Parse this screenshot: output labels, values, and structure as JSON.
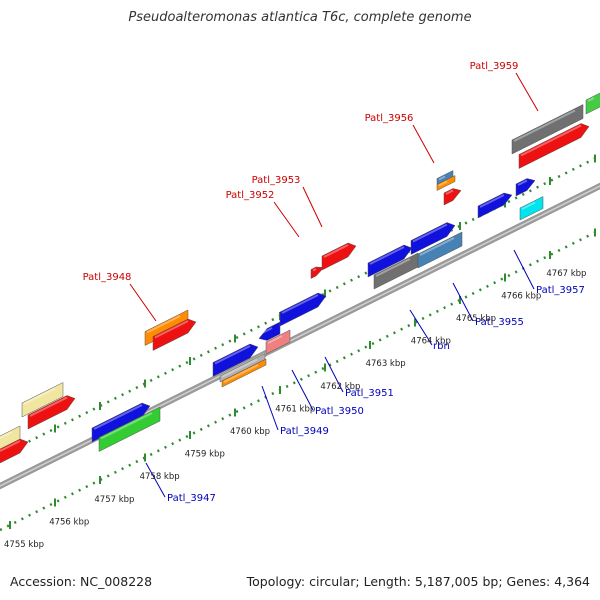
{
  "title": "Pseudoalteromonas atlantica T6c, complete genome",
  "footer": {
    "accession": "Accession: NC_008228",
    "topology": "Topology: circular; Length: 5,187,005 bp; Genes: 4,364"
  },
  "colors": {
    "backbone": "#888888",
    "track_dots": "#2e8b2e",
    "label_top": "#cc0000",
    "label_bottom": "#0000bb"
  },
  "kbp_ticks": [
    "4755 kbp",
    "4756 kbp",
    "4757 kbp",
    "4758 kbp",
    "4759 kbp",
    "4760 kbp",
    "4761 kbp",
    "4762 kbp",
    "4763 kbp",
    "4764 kbp",
    "4765 kbp",
    "4766 kbp",
    "4767 kbp"
  ],
  "top_labels": [
    "Patl_3948",
    "Patl_3952",
    "Patl_3953",
    "Patl_3956",
    "Patl_3959"
  ],
  "bottom_labels": [
    "Patl_3947",
    "Patl_3949",
    "Patl_3950",
    "Patl_3951",
    "rbn",
    "Patl_3955",
    "Patl_3957"
  ]
}
